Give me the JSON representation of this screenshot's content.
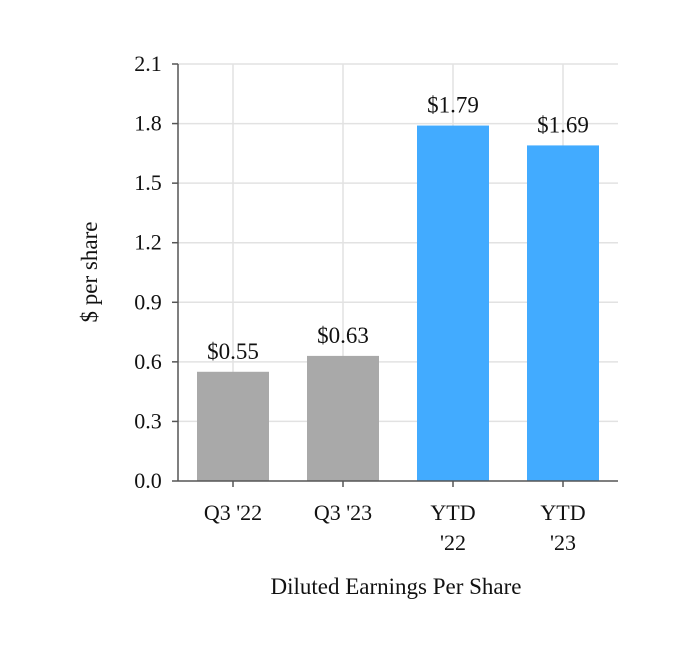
{
  "chart_data": {
    "type": "bar",
    "title": "",
    "categories": [
      [
        "Q3 '22"
      ],
      [
        "Q3 '23"
      ],
      [
        "YTD",
        "'22"
      ],
      [
        "YTD",
        "'23"
      ]
    ],
    "values": [
      0.55,
      0.63,
      1.79,
      1.69
    ],
    "data_labels": [
      "$0.55",
      "$0.63",
      "$1.79",
      "$1.69"
    ],
    "bar_colors": [
      "#a9a9a9",
      "#a9a9a9",
      "#42abff",
      "#42abff"
    ],
    "xlabel": "Diluted Earnings Per Share",
    "ylabel": "$ per share",
    "ylim": [
      0,
      2.1
    ],
    "yticks": [
      0.0,
      0.3,
      0.6,
      0.9,
      1.2,
      1.5,
      1.8,
      2.1
    ],
    "ytick_labels": [
      "0.0",
      "0.3",
      "0.6",
      "0.9",
      "1.2",
      "1.5",
      "1.8",
      "2.1"
    ],
    "grid": true
  }
}
